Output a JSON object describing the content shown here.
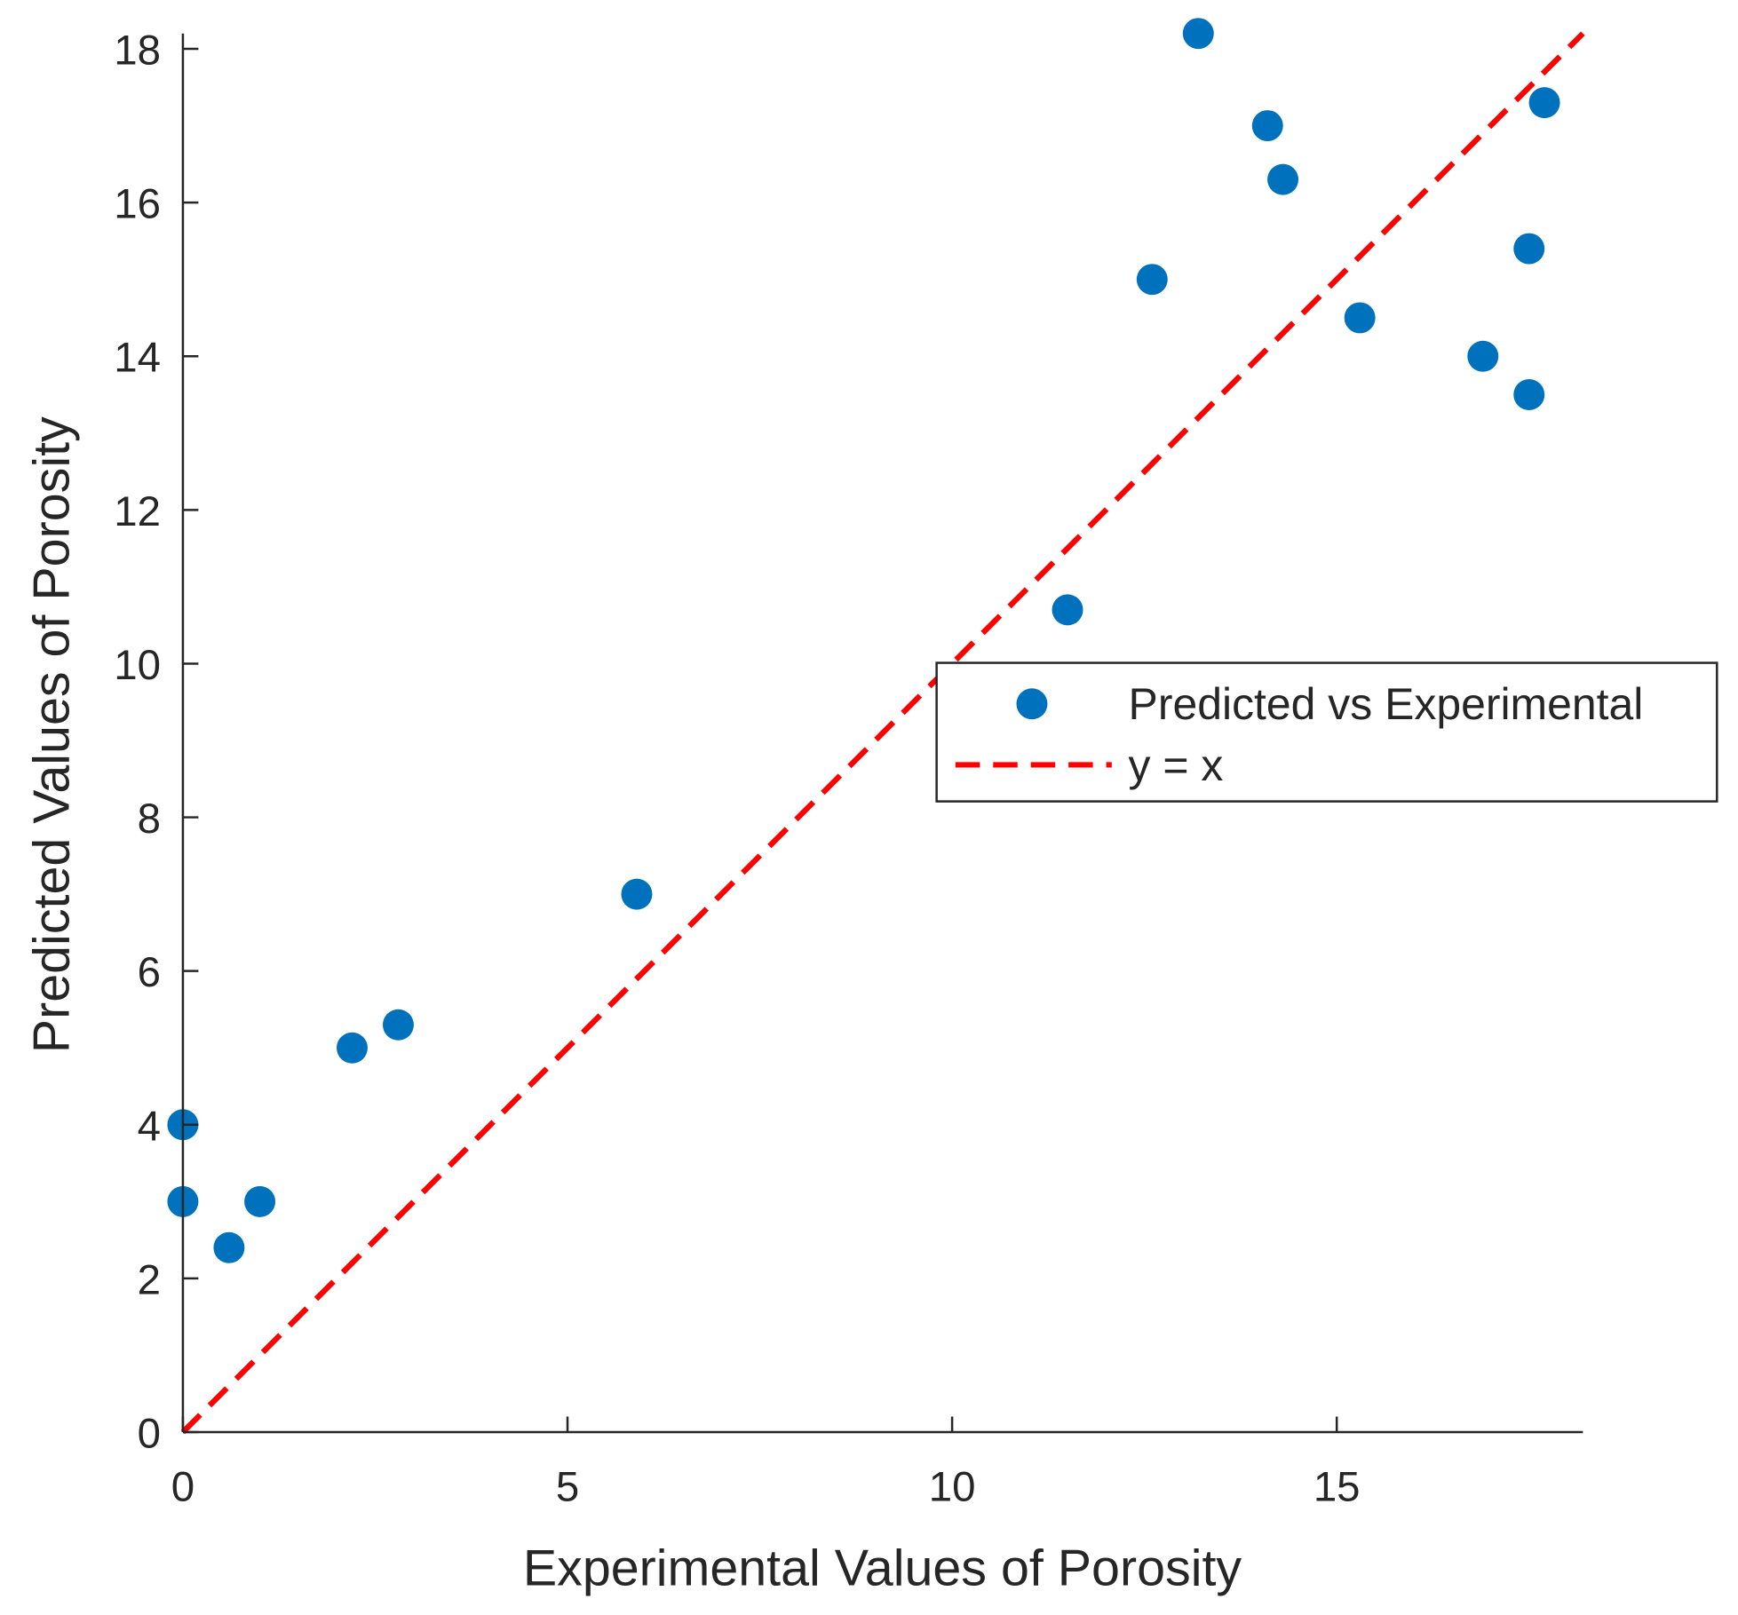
{
  "chart_data": {
    "type": "scatter",
    "title": "",
    "xlabel": "Experimental Values of Porosity",
    "ylabel": "Predicted Values of Porosity",
    "xlim": [
      0,
      18.2
    ],
    "ylim": [
      0,
      18.2
    ],
    "xticks": [
      0,
      5,
      10,
      15
    ],
    "yticks": [
      0,
      2,
      4,
      6,
      8,
      10,
      12,
      14,
      16,
      18
    ],
    "grid": false,
    "legend_position": "center-right",
    "series": [
      {
        "name": "Predicted vs Experimental",
        "kind": "scatter",
        "color": "#0072BD",
        "points": [
          [
            0,
            4.0
          ],
          [
            0,
            3.0
          ],
          [
            0.6,
            2.4
          ],
          [
            1.0,
            3.0
          ],
          [
            2.2,
            5.0
          ],
          [
            2.8,
            5.3
          ],
          [
            5.9,
            7.0
          ],
          [
            11.5,
            10.7
          ],
          [
            12.6,
            15.0
          ],
          [
            13.2,
            18.2
          ],
          [
            14.1,
            17.0
          ],
          [
            14.3,
            16.3
          ],
          [
            15.3,
            14.5
          ],
          [
            16.9,
            14.0
          ],
          [
            17.5,
            13.5
          ],
          [
            17.5,
            15.4
          ],
          [
            17.7,
            17.3
          ]
        ]
      },
      {
        "name": "y = x",
        "kind": "line",
        "style": "dashed",
        "color": "#FF0000",
        "points": [
          [
            0,
            0
          ],
          [
            18.2,
            18.2
          ]
        ]
      }
    ]
  }
}
